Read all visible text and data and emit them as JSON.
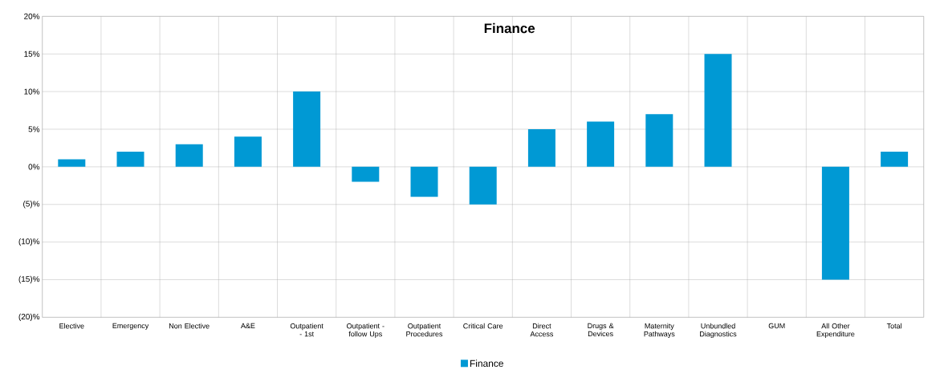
{
  "chart_data": {
    "type": "bar",
    "title": "Finance",
    "categories": [
      "Elective",
      "Emergency",
      "Non Elective",
      "A&E",
      "Outpatient - 1st",
      "Outpatient - follow Ups",
      "Outpatient Procedures",
      "Critical Care",
      "Direct Access",
      "Drugs & Devices",
      "Maternity Pathways",
      "Unbundled Diagnostics",
      "GUM",
      "All Other Expenditure",
      "Total"
    ],
    "series": [
      {
        "name": "Finance",
        "color": "#0099d4",
        "values": [
          1,
          2,
          3,
          4,
          10,
          -2,
          -4,
          -5,
          5,
          6,
          7,
          15,
          0,
          -15,
          2
        ]
      }
    ],
    "ylim": [
      -20,
      20
    ],
    "yticks": [
      {
        "value": -20,
        "label": "(20)%"
      },
      {
        "value": -15,
        "label": "(15)%"
      },
      {
        "value": -10,
        "label": "(10)%"
      },
      {
        "value": -5,
        "label": "(5)%"
      },
      {
        "value": 0,
        "label": "0%"
      },
      {
        "value": 5,
        "label": "5%"
      },
      {
        "value": 10,
        "label": "10%"
      },
      {
        "value": 15,
        "label": "15%"
      },
      {
        "value": 20,
        "label": "20%"
      }
    ],
    "grid": true,
    "legend": "bottom"
  }
}
